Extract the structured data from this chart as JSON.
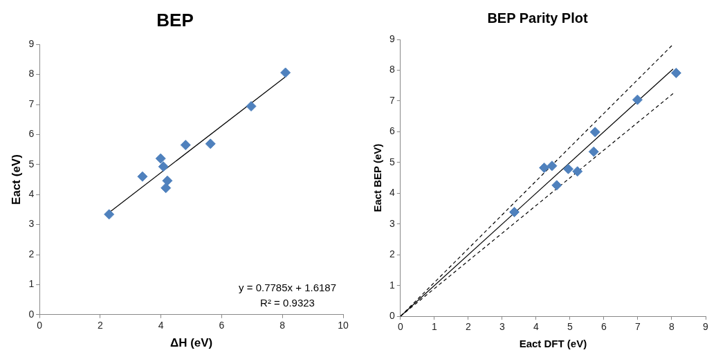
{
  "chart_data": [
    {
      "type": "scatter",
      "title": "BEP",
      "xlabel": "ΔH (eV)",
      "ylabel": "Eact (eV)",
      "xlim": [
        0,
        10
      ],
      "xticks": [
        0,
        2,
        4,
        6,
        8,
        10
      ],
      "ylim": [
        0,
        9
      ],
      "yticks": [
        0,
        1,
        2,
        3,
        4,
        5,
        6,
        7,
        8,
        9
      ],
      "grid": false,
      "legend": false,
      "series": [
        {
          "marker": "diamond",
          "color": "#4f81bd",
          "x": [
            2.29,
            3.39,
            3.99,
            4.08,
            4.16,
            4.21,
            4.81,
            5.63,
            6.97,
            8.1
          ],
          "values": [
            3.34,
            4.6,
            5.2,
            4.93,
            4.22,
            4.46,
            5.65,
            5.69,
            6.94,
            8.06
          ]
        },
        {
          "type": "line",
          "marker": "none",
          "color": "#000000",
          "line_style": "solid",
          "x": [
            2.29,
            8.1
          ],
          "values": [
            3.4,
            7.92
          ]
        }
      ],
      "annotations": [
        "y = 0.7785x + 1.6187",
        "R² = 0.9323"
      ]
    },
    {
      "type": "scatter",
      "title": "BEP Parity Plot",
      "xlabel": "Eact DFT (eV)",
      "ylabel": "Eact BEP (eV)",
      "xlim": [
        0,
        9
      ],
      "xticks": [
        0,
        1,
        2,
        3,
        4,
        5,
        6,
        7,
        8,
        9
      ],
      "ylim": [
        0,
        9
      ],
      "yticks": [
        0,
        1,
        2,
        3,
        4,
        5,
        6,
        7,
        8,
        9
      ],
      "grid": false,
      "legend": false,
      "series": [
        {
          "marker": "diamond",
          "color": "#4f81bd",
          "x": [
            3.36,
            4.24,
            4.47,
            4.61,
            4.95,
            5.22,
            5.7,
            5.74,
            6.99,
            8.13
          ],
          "values": [
            3.39,
            4.83,
            4.89,
            4.26,
            4.79,
            4.71,
            5.35,
            5.99,
            7.04,
            7.91
          ]
        },
        {
          "type": "line",
          "marker": "none",
          "color": "#000000",
          "line_style": "solid",
          "x": [
            0,
            8.04
          ],
          "values": [
            0,
            8.04
          ]
        },
        {
          "type": "line",
          "marker": "none",
          "color": "#000000",
          "line_style": "dashed",
          "x": [
            0,
            8.04
          ],
          "values": [
            0,
            8.84
          ]
        },
        {
          "type": "line",
          "marker": "none",
          "color": "#000000",
          "line_style": "dashed",
          "x": [
            0,
            8.04
          ],
          "values": [
            0,
            7.24
          ]
        }
      ]
    }
  ]
}
